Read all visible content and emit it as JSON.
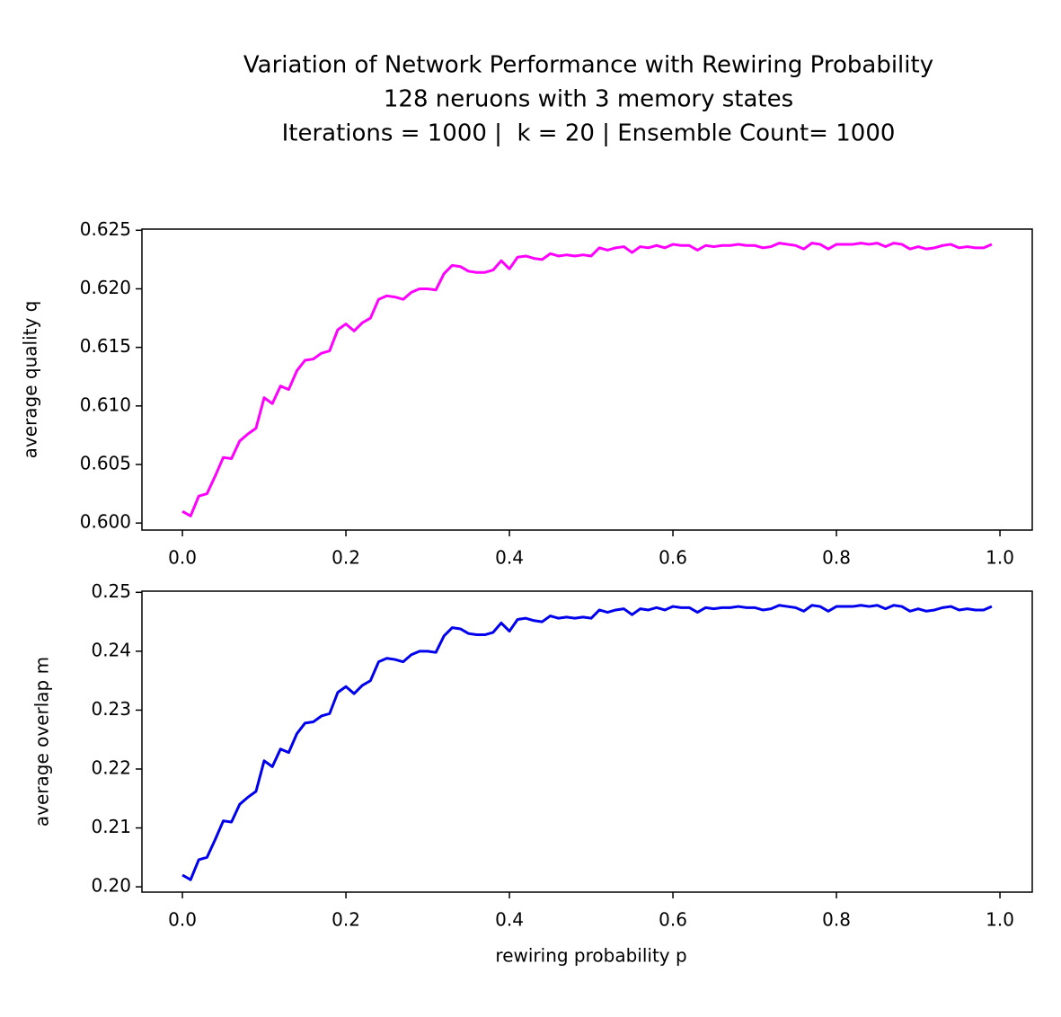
{
  "title": [
    "Variation of Network Performance with Rewiring Probability",
    "128 neruons with 3 memory states",
    "Iterations = 1000 |  k = 20 | Ensemble Count= 1000"
  ],
  "chart_data": [
    {
      "type": "line",
      "ylabel": "average quality q",
      "color": "#ff00ff",
      "x": [
        0,
        0.01,
        0.02,
        0.03,
        0.04,
        0.05,
        0.06,
        0.07,
        0.08,
        0.09,
        0.1,
        0.11,
        0.12,
        0.13,
        0.14,
        0.15,
        0.16,
        0.17,
        0.18,
        0.19,
        0.2,
        0.21,
        0.22,
        0.23,
        0.24,
        0.25,
        0.26,
        0.27,
        0.28,
        0.29,
        0.3,
        0.31,
        0.32,
        0.33,
        0.34,
        0.35,
        0.36,
        0.37,
        0.38,
        0.39,
        0.4,
        0.41,
        0.42,
        0.43,
        0.44,
        0.45,
        0.46,
        0.47,
        0.48,
        0.49,
        0.5,
        0.51,
        0.52,
        0.53,
        0.54,
        0.55,
        0.56,
        0.57,
        0.58,
        0.59,
        0.6,
        0.61,
        0.62,
        0.63,
        0.64,
        0.65,
        0.66,
        0.67,
        0.68,
        0.69,
        0.7,
        0.71,
        0.72,
        0.73,
        0.74,
        0.75,
        0.76,
        0.77,
        0.78,
        0.79,
        0.8,
        0.81,
        0.82,
        0.83,
        0.84,
        0.85,
        0.86,
        0.87,
        0.88,
        0.89,
        0.9,
        0.91,
        0.92,
        0.93,
        0.94,
        0.95,
        0.96,
        0.97,
        0.98,
        0.99
      ],
      "values": [
        0.601,
        0.6006,
        0.6023,
        0.6025,
        0.604,
        0.6056,
        0.6055,
        0.607,
        0.6076,
        0.6081,
        0.6107,
        0.6102,
        0.6117,
        0.6114,
        0.613,
        0.6139,
        0.614,
        0.6145,
        0.6147,
        0.6165,
        0.617,
        0.6164,
        0.6171,
        0.6175,
        0.6191,
        0.6194,
        0.6193,
        0.6191,
        0.6197,
        0.62,
        0.62,
        0.6199,
        0.6213,
        0.622,
        0.6219,
        0.6215,
        0.6214,
        0.6214,
        0.6216,
        0.6224,
        0.6217,
        0.6227,
        0.6228,
        0.6226,
        0.6225,
        0.623,
        0.6228,
        0.6229,
        0.6228,
        0.6229,
        0.6228,
        0.6235,
        0.6233,
        0.6235,
        0.6236,
        0.6231,
        0.6236,
        0.6235,
        0.6237,
        0.6235,
        0.6238,
        0.6237,
        0.6237,
        0.6233,
        0.6237,
        0.6236,
        0.6237,
        0.6237,
        0.6238,
        0.6237,
        0.6237,
        0.6235,
        0.6236,
        0.6239,
        0.6238,
        0.6237,
        0.6234,
        0.6239,
        0.6238,
        0.6234,
        0.6238,
        0.6238,
        0.6238,
        0.6239,
        0.6238,
        0.6239,
        0.6236,
        0.6239,
        0.6238,
        0.6234,
        0.6236,
        0.6234,
        0.6235,
        0.6237,
        0.6238,
        0.6235,
        0.6236,
        0.6235,
        0.6235,
        0.6238
      ],
      "xlim": [
        -0.0495,
        1.0395
      ],
      "ylim": [
        0.5994,
        0.6251
      ],
      "xticks": [
        {
          "value": 0,
          "label": "0.0"
        },
        0.2,
        0.4,
        0.6,
        0.8,
        {
          "value": 1,
          "label": "1.0"
        }
      ],
      "yticks": [
        {
          "value": 0.6,
          "label": "0.600"
        },
        0.605,
        {
          "value": 0.61,
          "label": "0.610"
        },
        0.615,
        {
          "value": 0.62,
          "label": "0.620"
        },
        0.625
      ]
    },
    {
      "type": "line",
      "ylabel": "average overlap m",
      "xlabel": "rewiring probability p",
      "color": "#0000ee",
      "x": [
        0,
        0.01,
        0.02,
        0.03,
        0.04,
        0.05,
        0.06,
        0.07,
        0.08,
        0.09,
        0.1,
        0.11,
        0.12,
        0.13,
        0.14,
        0.15,
        0.16,
        0.17,
        0.18,
        0.19,
        0.2,
        0.21,
        0.22,
        0.23,
        0.24,
        0.25,
        0.26,
        0.27,
        0.28,
        0.29,
        0.3,
        0.31,
        0.32,
        0.33,
        0.34,
        0.35,
        0.36,
        0.37,
        0.38,
        0.39,
        0.4,
        0.41,
        0.42,
        0.43,
        0.44,
        0.45,
        0.46,
        0.47,
        0.48,
        0.49,
        0.5,
        0.51,
        0.52,
        0.53,
        0.54,
        0.55,
        0.56,
        0.57,
        0.58,
        0.59,
        0.6,
        0.61,
        0.62,
        0.63,
        0.64,
        0.65,
        0.66,
        0.67,
        0.68,
        0.69,
        0.7,
        0.71,
        0.72,
        0.73,
        0.74,
        0.75,
        0.76,
        0.77,
        0.78,
        0.79,
        0.8,
        0.81,
        0.82,
        0.83,
        0.84,
        0.85,
        0.86,
        0.87,
        0.88,
        0.89,
        0.9,
        0.91,
        0.92,
        0.93,
        0.94,
        0.95,
        0.96,
        0.97,
        0.98,
        0.99
      ],
      "values": [
        0.202,
        0.2012,
        0.2046,
        0.205,
        0.208,
        0.2112,
        0.211,
        0.214,
        0.2152,
        0.2162,
        0.2214,
        0.2204,
        0.2234,
        0.2228,
        0.226,
        0.2278,
        0.228,
        0.229,
        0.2294,
        0.233,
        0.234,
        0.2328,
        0.2342,
        0.235,
        0.2382,
        0.2388,
        0.2386,
        0.2382,
        0.2394,
        0.24,
        0.24,
        0.2398,
        0.2426,
        0.244,
        0.2438,
        0.243,
        0.2428,
        0.2428,
        0.2432,
        0.2448,
        0.2434,
        0.2454,
        0.2456,
        0.2452,
        0.245,
        0.246,
        0.2456,
        0.2458,
        0.2456,
        0.2458,
        0.2456,
        0.247,
        0.2466,
        0.247,
        0.2472,
        0.2462,
        0.2472,
        0.247,
        0.2474,
        0.247,
        0.2476,
        0.2474,
        0.2474,
        0.2466,
        0.2474,
        0.2472,
        0.2474,
        0.2474,
        0.2476,
        0.2474,
        0.2474,
        0.247,
        0.2472,
        0.2478,
        0.2476,
        0.2474,
        0.2468,
        0.2478,
        0.2476,
        0.2468,
        0.2476,
        0.2476,
        0.2476,
        0.2478,
        0.2476,
        0.2478,
        0.2472,
        0.2478,
        0.2476,
        0.2468,
        0.2472,
        0.2468,
        0.247,
        0.2474,
        0.2476,
        0.247,
        0.2472,
        0.247,
        0.247,
        0.2476
      ],
      "xlim": [
        -0.0495,
        1.0395
      ],
      "ylim": [
        0.1991,
        0.2502
      ],
      "xticks": [
        {
          "value": 0,
          "label": "0.0"
        },
        0.2,
        0.4,
        0.6,
        0.8,
        {
          "value": 1,
          "label": "1.0"
        }
      ],
      "yticks": [
        {
          "value": 0.2,
          "label": "0.20"
        },
        0.21,
        0.22,
        0.23,
        0.24,
        0.25
      ]
    }
  ]
}
